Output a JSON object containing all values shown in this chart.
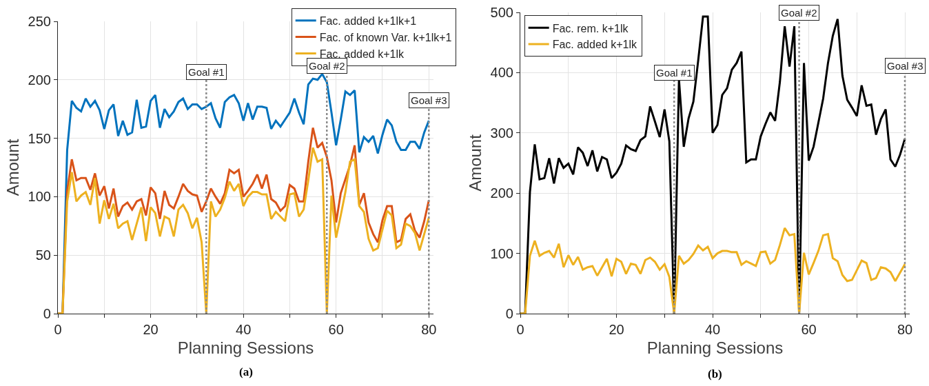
{
  "chart_data": [
    {
      "type": "line",
      "xlabel": "Planning Sessions",
      "ylabel": "Amount",
      "annotations": [
        "(a)",
        {
          "text": "Goal #1",
          "x": 32,
          "y": 200
        },
        {
          "text": "Goal #2",
          "x": 58,
          "y": 205
        },
        {
          "text": "Goal #3",
          "x": 80,
          "y": 176
        }
      ],
      "x": [
        0,
        1,
        2,
        3,
        4,
        5,
        6,
        7,
        8,
        9,
        10,
        11,
        12,
        13,
        14,
        15,
        16,
        17,
        18,
        19,
        20,
        21,
        22,
        23,
        24,
        25,
        26,
        27,
        28,
        29,
        30,
        31,
        32,
        33,
        34,
        35,
        36,
        37,
        38,
        39,
        40,
        41,
        42,
        43,
        44,
        45,
        46,
        47,
        48,
        49,
        50,
        51,
        52,
        53,
        54,
        55,
        56,
        57,
        58,
        59,
        60,
        61,
        62,
        63,
        64,
        65,
        66,
        67,
        68,
        69,
        70,
        71,
        72,
        73,
        74,
        75,
        76,
        77,
        78,
        79,
        80
      ],
      "series": [
        {
          "name": "Fac. added k+1lk+1",
          "color": "#0072bd",
          "values": [
            0,
            0,
            140,
            182,
            176,
            173,
            184,
            177,
            182,
            174,
            158,
            174,
            179,
            152,
            165,
            153,
            155,
            183,
            159,
            160,
            182,
            187,
            159,
            175,
            168,
            173,
            181,
            184,
            175,
            179,
            179,
            175,
            177,
            180,
            167,
            159,
            181,
            185,
            187,
            180,
            165,
            180,
            166,
            177,
            177,
            176,
            158,
            165,
            160,
            166,
            172,
            184,
            172,
            162,
            196,
            201,
            200,
            205,
            198,
            172,
            144,
            166,
            190,
            187,
            191,
            138,
            151,
            147,
            152,
            137,
            153,
            166,
            161,
            147,
            140,
            140,
            147,
            147,
            141,
            155,
            165
          ]
        },
        {
          "name": "Fac. of known Var. k+1lk+1",
          "color": "#d95319",
          "values": [
            0,
            0,
            105,
            132,
            114,
            116,
            116,
            106,
            120,
            101,
            109,
            90,
            107,
            83,
            92,
            95,
            89,
            96,
            98,
            84,
            108,
            103,
            81,
            105,
            93,
            90,
            100,
            111,
            105,
            102,
            101,
            87,
            96,
            107,
            100,
            94,
            103,
            123,
            120,
            123,
            100,
            105,
            111,
            119,
            107,
            119,
            98,
            95,
            88,
            92,
            110,
            107,
            96,
            96,
            130,
            159,
            142,
            146,
            134,
            114,
            78,
            103,
            115,
            127,
            144,
            93,
            103,
            78,
            68,
            61,
            80,
            92,
            92,
            61,
            63,
            81,
            85,
            71,
            65,
            79,
            97
          ]
        },
        {
          "name": "Fac. added k+1lk",
          "color": "#edb120",
          "values": [
            0,
            0,
            96,
            121,
            96,
            101,
            104,
            93,
            116,
            77,
            97,
            81,
            94,
            73,
            77,
            79,
            63,
            77,
            91,
            62,
            91,
            86,
            66,
            83,
            81,
            66,
            89,
            93,
            86,
            73,
            82,
            61,
            0,
            96,
            83,
            89,
            99,
            113,
            105,
            111,
            92,
            100,
            104,
            104,
            102,
            102,
            81,
            87,
            83,
            79,
            102,
            103,
            83,
            89,
            114,
            142,
            130,
            132,
            0,
            101,
            65,
            84,
            104,
            130,
            132,
            92,
            87,
            64,
            54,
            56,
            72,
            88,
            84,
            56,
            59,
            77,
            75,
            69,
            54,
            68,
            82
          ]
        }
      ],
      "xlim": [
        0,
        81
      ],
      "xticks": [
        0,
        {
          "value": 10,
          "label": null
        },
        20,
        {
          "value": 30,
          "label": null
        },
        40,
        {
          "value": 50,
          "label": null
        },
        60,
        {
          "value": 70,
          "label": null
        },
        80
      ],
      "ylim": [
        0,
        250
      ],
      "yticks": [
        0,
        50,
        100,
        150,
        200,
        250
      ],
      "grid": true,
      "legend": "top right",
      "marker": "none",
      "line_style": "solid",
      "ref_lines": [
        {
          "axis": "x",
          "value": 32,
          "color": "#8c8c8c",
          "line_style": "dotted"
        },
        {
          "axis": "x",
          "value": 58,
          "color": "#8c8c8c",
          "line_style": "dotted"
        },
        {
          "axis": "x",
          "value": 80,
          "color": "#8c8c8c",
          "line_style": "dotted"
        }
      ]
    },
    {
      "type": "line",
      "xlabel": "Planning Sessions",
      "ylabel": "Amount",
      "annotations": [
        "(b)",
        {
          "text": "Goal #1",
          "x": 32,
          "y": 387
        },
        {
          "text": "Goal #2",
          "x": 58,
          "y": 486
        },
        {
          "text": "Goal #3",
          "x": 80,
          "y": 398
        }
      ],
      "x": [
        0,
        1,
        2,
        3,
        4,
        5,
        6,
        7,
        8,
        9,
        10,
        11,
        12,
        13,
        14,
        15,
        16,
        17,
        18,
        19,
        20,
        21,
        22,
        23,
        24,
        25,
        26,
        27,
        28,
        29,
        30,
        31,
        32,
        33,
        34,
        35,
        36,
        37,
        38,
        39,
        40,
        41,
        42,
        43,
        44,
        45,
        46,
        47,
        48,
        49,
        50,
        51,
        52,
        53,
        54,
        55,
        56,
        57,
        58,
        59,
        60,
        61,
        62,
        63,
        64,
        65,
        66,
        67,
        68,
        69,
        70,
        71,
        72,
        73,
        74,
        75,
        76,
        77,
        78,
        79,
        80
      ],
      "series": [
        {
          "name": "Fac. rem. k+1lk",
          "color": "#000000",
          "values": [
            0,
            0,
            202,
            281,
            223,
            225,
            258,
            216,
            258,
            242,
            249,
            231,
            276,
            267,
            245,
            271,
            236,
            260,
            256,
            225,
            234,
            249,
            279,
            273,
            270,
            288,
            294,
            344,
            319,
            293,
            339,
            286,
            0,
            389,
            277,
            324,
            352,
            420,
            493,
            493,
            300,
            313,
            363,
            374,
            405,
            416,
            435,
            251,
            256,
            256,
            294,
            315,
            334,
            320,
            385,
            477,
            410,
            477,
            0,
            416,
            254,
            277,
            317,
            357,
            416,
            461,
            489,
            395,
            355,
            342,
            328,
            379,
            345,
            347,
            297,
            323,
            339,
            256,
            244,
            264,
            290
          ]
        },
        {
          "name": "Fac. added k+1lk",
          "color": "#edb120",
          "values": [
            0,
            0,
            96,
            121,
            96,
            101,
            104,
            93,
            116,
            77,
            97,
            81,
            94,
            73,
            77,
            79,
            63,
            77,
            91,
            62,
            91,
            86,
            66,
            83,
            81,
            66,
            89,
            93,
            86,
            73,
            82,
            61,
            0,
            96,
            83,
            89,
            99,
            113,
            105,
            111,
            92,
            100,
            104,
            104,
            102,
            102,
            81,
            87,
            83,
            79,
            102,
            103,
            83,
            89,
            114,
            142,
            130,
            132,
            0,
            101,
            65,
            84,
            104,
            130,
            132,
            92,
            87,
            64,
            54,
            56,
            72,
            88,
            84,
            56,
            59,
            77,
            75,
            69,
            54,
            68,
            82
          ]
        }
      ],
      "xlim": [
        0,
        81
      ],
      "xticks": [
        0,
        {
          "value": 10,
          "label": null
        },
        20,
        {
          "value": 30,
          "label": null
        },
        40,
        {
          "value": 50,
          "label": null
        },
        60,
        {
          "value": 70,
          "label": null
        },
        80
      ],
      "ylim": [
        0,
        500
      ],
      "yticks": [
        0,
        100,
        200,
        300,
        400,
        500
      ],
      "grid": true,
      "legend": "top left",
      "marker": "none",
      "line_style": "solid",
      "ref_lines": [
        {
          "axis": "x",
          "value": 32,
          "color": "#8c8c8c",
          "line_style": "dotted"
        },
        {
          "axis": "x",
          "value": 58,
          "color": "#8c8c8c",
          "line_style": "dotted"
        },
        {
          "axis": "x",
          "value": 80,
          "color": "#8c8c8c",
          "line_style": "dotted"
        }
      ]
    }
  ]
}
